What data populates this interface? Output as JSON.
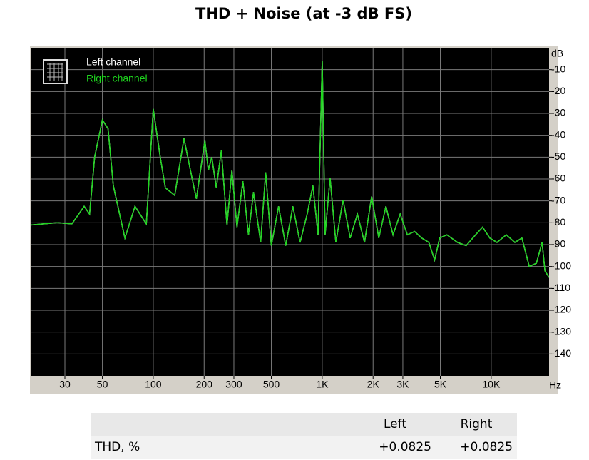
{
  "chart_data": {
    "type": "line",
    "title": "THD + Noise (at -3 dB FS)",
    "xscale": "log",
    "xlabel": "Hz",
    "ylabel": "dB",
    "xlim": [
      19,
      22000
    ],
    "ylim": [
      -150,
      0
    ],
    "xticks": [
      30,
      50,
      100,
      200,
      300,
      500,
      {
        "value": 1000,
        "label": "1K"
      },
      {
        "value": 2000,
        "label": "2K"
      },
      {
        "value": 3000,
        "label": "3K"
      },
      {
        "value": 5000,
        "label": "5K"
      },
      {
        "value": 10000,
        "label": "10K"
      }
    ],
    "yticks": [
      -10,
      -20,
      -30,
      -40,
      -50,
      -60,
      -70,
      -80,
      -90,
      -100,
      -110,
      -120,
      -130,
      -140
    ],
    "grid": true,
    "legend": "top-left",
    "x": [
      19,
      27,
      33,
      39,
      42,
      45,
      50,
      54,
      58,
      68,
      78,
      91,
      100,
      110,
      118,
      134,
      152,
      168,
      180,
      202,
      212,
      222,
      236,
      253,
      273,
      292,
      313,
      339,
      366,
      392,
      432,
      463,
      500,
      552,
      608,
      670,
      739,
      815,
      881,
      944,
      1000,
      1040,
      1113,
      1204,
      1328,
      1464,
      1614,
      1779,
      1961,
      2161,
      2382,
      2626,
      2894,
      3190,
      3521,
      3880,
      4277,
      4624,
      4954,
      5460,
      6323,
      7108,
      8075,
      8894,
      9815,
      10816,
      12277,
      13800,
      15200,
      16800,
      18500,
      20000,
      20800,
      22000
    ],
    "series": [
      {
        "name": "Left channel",
        "color": "#ffffff",
        "values": [
          -81,
          -80,
          -80.5,
          -72.5,
          -76,
          -50,
          -33,
          -37,
          -63,
          -87,
          -72.5,
          -80.5,
          -28,
          -50,
          -64,
          -67.5,
          -41.5,
          -58,
          -69,
          -42.5,
          -56,
          -50,
          -64,
          -47,
          -81,
          -56,
          -82,
          -61,
          -85.5,
          -66,
          -89,
          -57,
          -90.5,
          -72.5,
          -90.5,
          -72.5,
          -89,
          -76,
          -63,
          -85.5,
          -6,
          -85.5,
          -59.5,
          -89,
          -69.5,
          -87,
          -76,
          -89,
          -68,
          -87,
          -72.5,
          -85.5,
          -76,
          -85.5,
          -84,
          -87,
          -89,
          -97,
          -87,
          -85.5,
          -89,
          -90.5,
          -85.5,
          -82,
          -87,
          -89,
          -85.5,
          -89,
          -87,
          -100,
          -98.5,
          -89,
          -102,
          -105
        ]
      },
      {
        "name": "Right channel",
        "color": "#1ed61e",
        "values": [
          -81,
          -80,
          -80.5,
          -72.5,
          -76,
          -50,
          -33,
          -37,
          -63,
          -87,
          -72.5,
          -80.5,
          -28,
          -50,
          -64,
          -67.5,
          -41.5,
          -58,
          -69,
          -42.5,
          -56,
          -50,
          -64,
          -47,
          -81,
          -56,
          -82,
          -61,
          -85.5,
          -66,
          -89,
          -57,
          -90.5,
          -72.5,
          -90.5,
          -72.5,
          -89,
          -76,
          -63,
          -85.5,
          -6,
          -85.5,
          -59.5,
          -89,
          -69.5,
          -87,
          -76,
          -89,
          -68,
          -87,
          -72.5,
          -85.5,
          -76,
          -85.5,
          -84,
          -87,
          -89,
          -97,
          -87,
          -85.5,
          -89,
          -90.5,
          -85.5,
          -82,
          -87,
          -89,
          -85.5,
          -89,
          -87,
          -100,
          -98.5,
          -89,
          -102,
          -105
        ]
      }
    ]
  },
  "table": {
    "headers": [
      "Left",
      "Right"
    ],
    "rows": [
      [
        "THD, %",
        "+0.0825",
        "+0.0825"
      ]
    ]
  }
}
